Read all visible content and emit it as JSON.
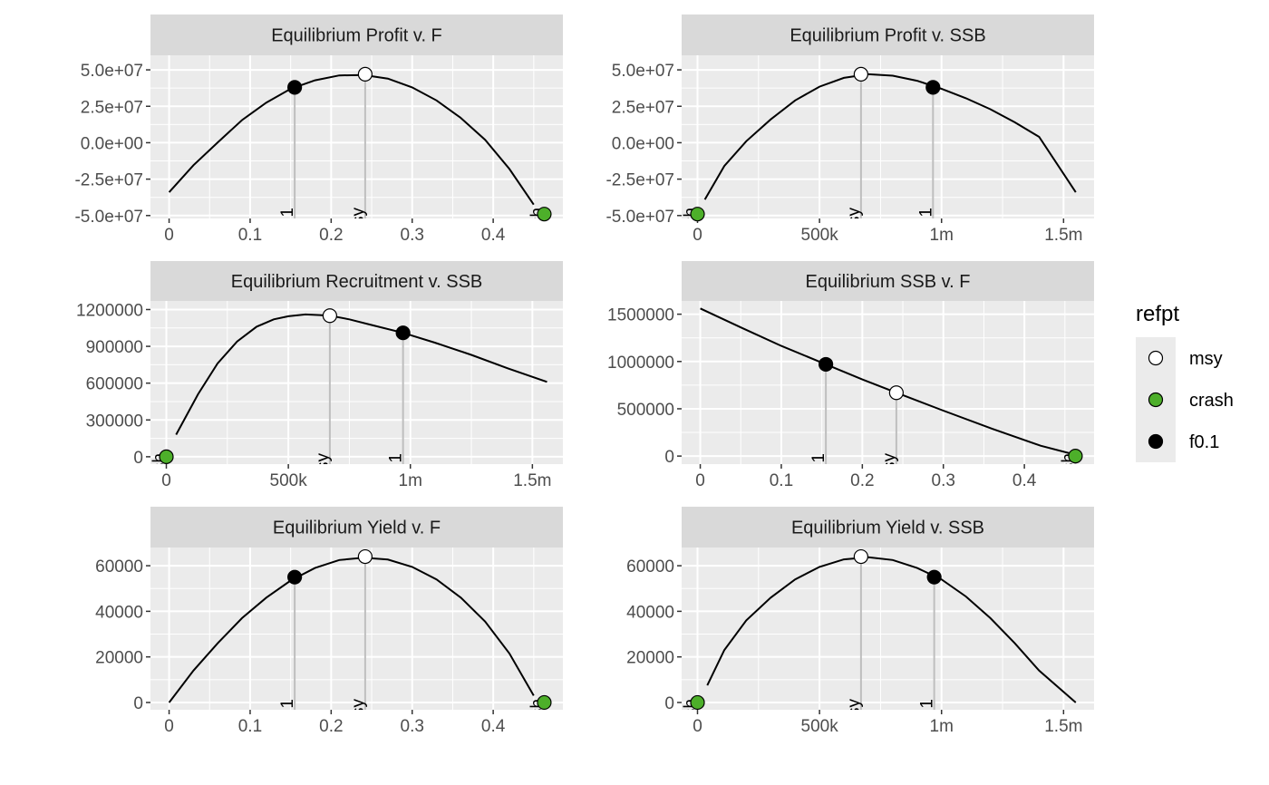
{
  "colors": {
    "panel_bg": "#EBEBEB",
    "strip_bg": "#D9D9D9",
    "grid": "#FFFFFF",
    "line": "#000000",
    "drop_line": "#BEBEBE",
    "tick_text": "#4D4D4D",
    "refpt_colors": {
      "msy": "#FFFFFF",
      "crash": "#4DAF2A",
      "f0.1": "#000000"
    }
  },
  "legend": {
    "title": "refpt",
    "position": "right",
    "items": [
      {
        "key": "msy",
        "label": "msy"
      },
      {
        "key": "crash",
        "label": "crash"
      },
      {
        "key": "f0.1",
        "label": "f0.1"
      }
    ]
  },
  "chart_data": [
    {
      "type": "line",
      "title": "Equilibrium Profit v. F",
      "xlim": [
        -0.023,
        0.486
      ],
      "ylim": [
        -52000000,
        60000000
      ],
      "x_ticks": [
        0,
        0.1,
        0.2,
        0.3,
        0.4
      ],
      "x_tick_labels": [
        "0",
        "0.1",
        "0.2",
        "0.3",
        "0.4"
      ],
      "y_ticks": [
        50000000,
        25000000,
        0,
        -25000000,
        -50000000
      ],
      "y_tick_labels": [
        "5.0e+07",
        "2.5e+07",
        "0.0e+00",
        "-2.5e+07",
        "-5.0e+07"
      ],
      "line": {
        "x": [
          0,
          0.03,
          0.06,
          0.09,
          0.12,
          0.15,
          0.18,
          0.21,
          0.24,
          0.27,
          0.3,
          0.33,
          0.36,
          0.39,
          0.42,
          0.45
        ],
        "y": [
          -34000000,
          -15500000,
          200000,
          15500000,
          27500000,
          37000000,
          42800000,
          46200000,
          46500000,
          44000000,
          38000000,
          29000000,
          17000000,
          2000000,
          -18000000,
          -42500000
        ]
      },
      "refpts": [
        {
          "refpt": "f0.1",
          "label": "f0.1",
          "x": 0.155,
          "y": 38000000
        },
        {
          "refpt": "msy",
          "label": "msy",
          "x": 0.242,
          "y": 47000000
        },
        {
          "refpt": "crash",
          "label": "crash",
          "x": 0.463,
          "y": -49000000
        }
      ]
    },
    {
      "type": "line",
      "title": "Equilibrium Profit v. SSB",
      "xlim": [
        -65000,
        1625000
      ],
      "ylim": [
        -52000000,
        60000000
      ],
      "x_ticks": [
        0,
        500000,
        1000000,
        1500000
      ],
      "x_tick_labels": [
        "0",
        "500k",
        "1m",
        "1.5m"
      ],
      "y_ticks": [
        50000000,
        25000000,
        0,
        -25000000,
        -50000000
      ],
      "y_tick_labels": [
        "5.0e+07",
        "2.5e+07",
        "0.0e+00",
        "-2.5e+07",
        "-5.0e+07"
      ],
      "line": {
        "x": [
          30000,
          110000,
          200000,
          300000,
          400000,
          500000,
          600000,
          700000,
          800000,
          900000,
          1000000,
          1100000,
          1200000,
          1300000,
          1400000,
          1550000
        ],
        "y": [
          -39000000,
          -16000000,
          1000000,
          16000000,
          29000000,
          38500000,
          44500000,
          47000000,
          46000000,
          42500000,
          37000000,
          30500000,
          23000000,
          14000000,
          4000000,
          -34000000
        ]
      },
      "refpts": [
        {
          "refpt": "crash",
          "label": "crash",
          "x": 0,
          "y": -49000000
        },
        {
          "refpt": "msy",
          "label": "msy",
          "x": 670000,
          "y": 47000000
        },
        {
          "refpt": "f0.1",
          "label": "f0.1",
          "x": 965000,
          "y": 38000000
        }
      ]
    },
    {
      "type": "line",
      "title": "Equilibrium Recruitment v. SSB",
      "xlim": [
        -65000,
        1625000
      ],
      "ylim": [
        -60000,
        1270000
      ],
      "x_ticks": [
        0,
        500000,
        1000000,
        1500000
      ],
      "x_tick_labels": [
        "0",
        "500k",
        "1m",
        "1.5m"
      ],
      "y_ticks": [
        1200000,
        900000,
        600000,
        300000,
        0
      ],
      "y_tick_labels": [
        "1200000",
        "900000",
        "600000",
        "300000",
        "0"
      ],
      "line": {
        "x": [
          40000,
          130000,
          210000,
          290000,
          370000,
          440000,
          500000,
          570000,
          630000,
          670000,
          750000,
          850000,
          970000,
          1100000,
          1250000,
          1400000,
          1560000
        ],
        "y": [
          180000,
          510000,
          760000,
          940000,
          1060000,
          1120000,
          1145000,
          1160000,
          1155000,
          1150000,
          1120000,
          1070000,
          1010000,
          930000,
          830000,
          720000,
          610000
        ]
      },
      "refpts": [
        {
          "refpt": "crash",
          "label": "crash",
          "x": 0,
          "y": 0
        },
        {
          "refpt": "msy",
          "label": "msy",
          "x": 670000,
          "y": 1150000
        },
        {
          "refpt": "f0.1",
          "label": "f0.1",
          "x": 970000,
          "y": 1010000
        }
      ]
    },
    {
      "type": "line",
      "title": "Equilibrium SSB v. F",
      "xlim": [
        -0.023,
        0.486
      ],
      "ylim": [
        -85000,
        1640000
      ],
      "x_ticks": [
        0,
        0.1,
        0.2,
        0.3,
        0.4
      ],
      "x_tick_labels": [
        "0",
        "0.1",
        "0.2",
        "0.3",
        "0.4"
      ],
      "y_ticks": [
        1500000,
        1000000,
        500000,
        0
      ],
      "y_tick_labels": [
        "1500000",
        "1000000",
        "500000",
        "0"
      ],
      "line": {
        "x": [
          0,
          0.05,
          0.1,
          0.155,
          0.2,
          0.242,
          0.3,
          0.36,
          0.42,
          0.46
        ],
        "y": [
          1560000,
          1360000,
          1165000,
          970000,
          810000,
          670000,
          480000,
          290000,
          110000,
          20000
        ]
      },
      "refpts": [
        {
          "refpt": "f0.1",
          "label": "f0.1",
          "x": 0.155,
          "y": 970000
        },
        {
          "refpt": "msy",
          "label": "msy",
          "x": 0.242,
          "y": 670000
        },
        {
          "refpt": "crash",
          "label": "crash",
          "x": 0.463,
          "y": 0
        }
      ]
    },
    {
      "type": "line",
      "title": "Equilibrium Yield v. F",
      "xlim": [
        -0.023,
        0.486
      ],
      "ylim": [
        -3200,
        68000
      ],
      "x_ticks": [
        0,
        0.1,
        0.2,
        0.3,
        0.4
      ],
      "x_tick_labels": [
        "0",
        "0.1",
        "0.2",
        "0.3",
        "0.4"
      ],
      "y_ticks": [
        60000,
        40000,
        20000,
        0
      ],
      "y_tick_labels": [
        "60000",
        "40000",
        "20000",
        "0"
      ],
      "line": {
        "x": [
          0,
          0.03,
          0.06,
          0.09,
          0.12,
          0.15,
          0.18,
          0.21,
          0.24,
          0.27,
          0.3,
          0.33,
          0.36,
          0.39,
          0.42,
          0.45
        ],
        "y": [
          0,
          14000,
          26000,
          37000,
          46000,
          53500,
          59000,
          62500,
          63500,
          62700,
          59500,
          54000,
          46000,
          35500,
          21500,
          3000
        ]
      },
      "refpts": [
        {
          "refpt": "f0.1",
          "label": "f0.1",
          "x": 0.155,
          "y": 55000
        },
        {
          "refpt": "msy",
          "label": "msy",
          "x": 0.242,
          "y": 64000
        },
        {
          "refpt": "crash",
          "label": "crash",
          "x": 0.463,
          "y": 0
        }
      ]
    },
    {
      "type": "line",
      "title": "Equilibrium Yield v. SSB",
      "xlim": [
        -65000,
        1625000
      ],
      "ylim": [
        -3200,
        68000
      ],
      "x_ticks": [
        0,
        500000,
        1000000,
        1500000
      ],
      "x_tick_labels": [
        "0",
        "500k",
        "1m",
        "1.5m"
      ],
      "y_ticks": [
        60000,
        40000,
        20000,
        0
      ],
      "y_tick_labels": [
        "60000",
        "40000",
        "20000",
        "0"
      ],
      "line": {
        "x": [
          40000,
          110000,
          200000,
          300000,
          400000,
          500000,
          600000,
          700000,
          800000,
          900000,
          1000000,
          1100000,
          1200000,
          1300000,
          1400000,
          1550000
        ],
        "y": [
          7500,
          23000,
          36000,
          46000,
          54000,
          59500,
          62800,
          63700,
          62500,
          59000,
          54000,
          46500,
          37000,
          26000,
          14000,
          0
        ]
      },
      "refpts": [
        {
          "refpt": "crash",
          "label": "crash",
          "x": 0,
          "y": 0
        },
        {
          "refpt": "msy",
          "label": "msy",
          "x": 670000,
          "y": 64000
        },
        {
          "refpt": "f0.1",
          "label": "f0.1",
          "x": 970000,
          "y": 55000
        }
      ]
    }
  ]
}
